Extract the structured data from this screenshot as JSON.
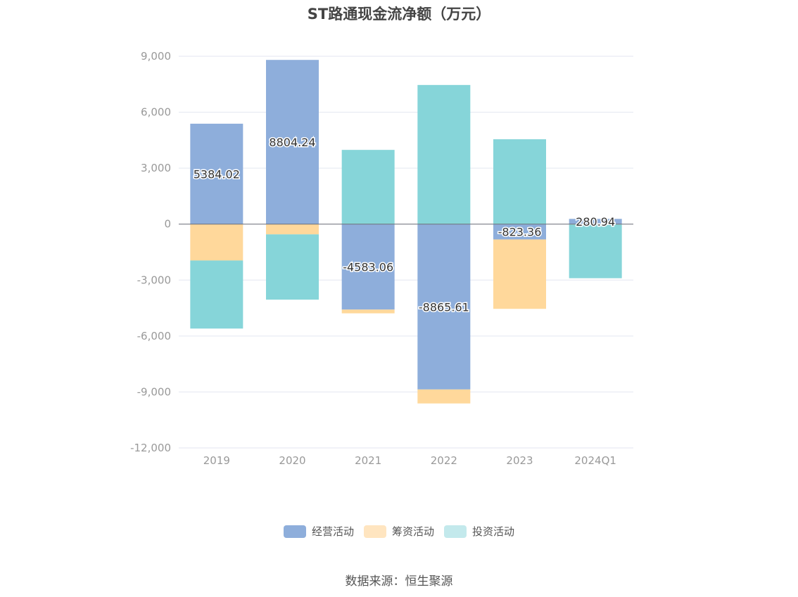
{
  "chart_data": {
    "type": "bar",
    "stacked": true,
    "title": "ST路通现金流净额（万元）",
    "categories": [
      "2019",
      "2020",
      "2021",
      "2022",
      "2023",
      "2024Q1"
    ],
    "ylim": [
      -12000,
      9000
    ],
    "yticks": [
      9000,
      6000,
      3000,
      0,
      -3000,
      -6000,
      -9000,
      -12000
    ],
    "ytick_labels": [
      "9,000",
      "6,000",
      "3,000",
      "0",
      "-3,000",
      "-6,000",
      "-9,000",
      "-12,000"
    ],
    "grid": true,
    "legend_position": "bottom",
    "series": [
      {
        "name": "经营活动",
        "color": "#8eaedb",
        "legend_color": "#8eaedb",
        "values": [
          5384.02,
          8804.24,
          -4583.06,
          -8865.61,
          -823.36,
          280.94
        ],
        "labels": [
          "5384.02",
          "8804.24",
          "-4583.06",
          "-8865.61",
          "-823.36",
          "280.94"
        ]
      },
      {
        "name": "筹资活动",
        "color": "#ffd89b",
        "legend_color": "#ffe5c0",
        "values": [
          -1950,
          -550,
          -200,
          -750,
          -3720,
          -20
        ],
        "labels": []
      },
      {
        "name": "投资活动",
        "color": "#86d5d9",
        "legend_color": "#c3e9ec",
        "values": [
          -3650,
          -3500,
          3980,
          7460,
          4550,
          -2880
        ],
        "labels": []
      }
    ]
  },
  "footer": {
    "source": "数据来源：恒生聚源"
  }
}
